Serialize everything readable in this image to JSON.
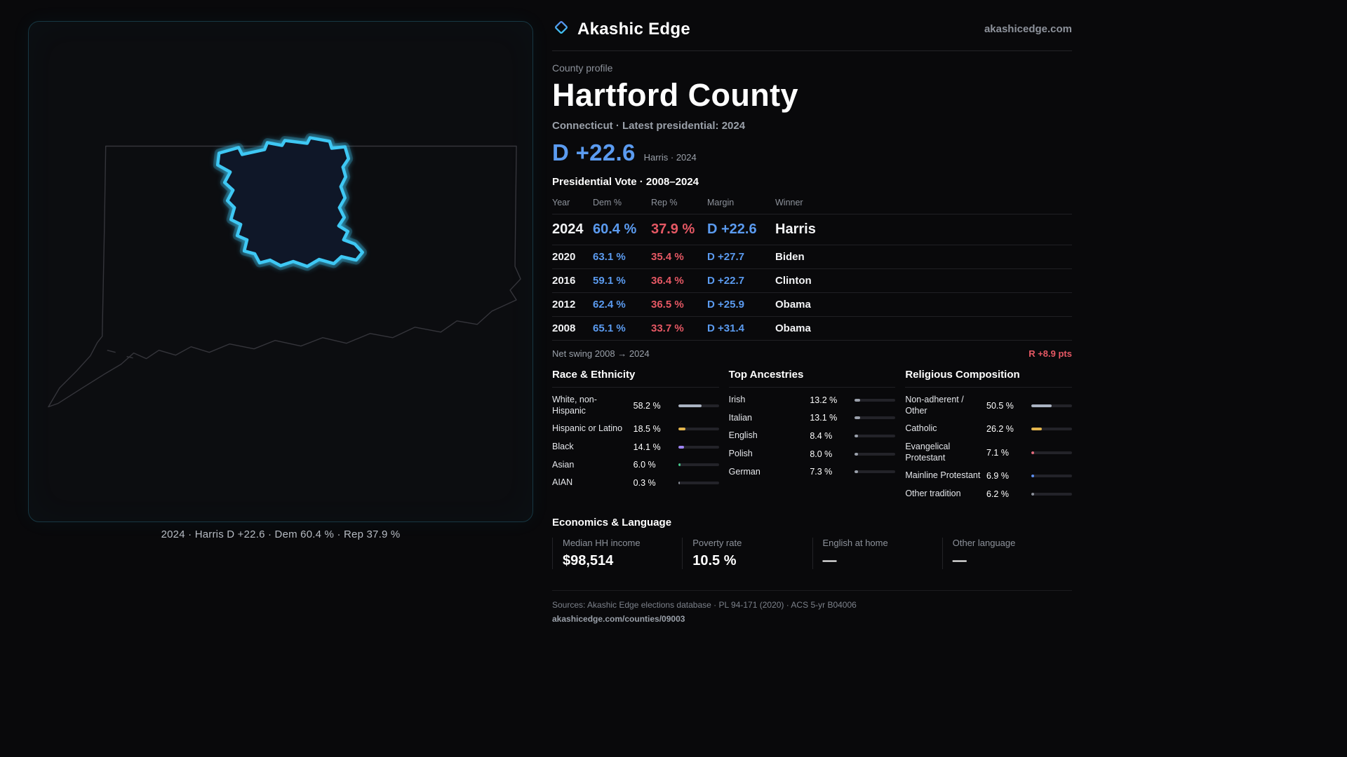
{
  "colors": {
    "accent_cyan": "#3ec8f4",
    "dem_blue": "#5b9bf0",
    "rep_red": "#e65864",
    "page_bg": "#09090b"
  },
  "brand": {
    "name": "Akashic Edge",
    "domain": "akashicedge.com",
    "logo_icon": "diamond-icon"
  },
  "profile": {
    "eyebrow": "County profile",
    "title": "Hartford County",
    "subtitle": "Connecticut · Latest presidential: 2024",
    "headline_margin": "D +22.6",
    "headline_detail": "Harris · 2024"
  },
  "map": {
    "caption": "2024 · Harris D +22.6 · Dem 60.4 % · Rep 37.9 %"
  },
  "vote_table": {
    "title": "Presidential Vote · 2008–2024",
    "columns": {
      "year": "Year",
      "dem": "Dem %",
      "rep": "Rep %",
      "margin": "Margin",
      "winner": "Winner"
    },
    "rows": [
      {
        "year": "2024",
        "dem": "60.4 %",
        "rep": "37.9 %",
        "margin": "D +22.6",
        "winner": "Harris"
      },
      {
        "year": "2020",
        "dem": "63.1 %",
        "rep": "35.4 %",
        "margin": "D +27.7",
        "winner": "Biden"
      },
      {
        "year": "2016",
        "dem": "59.1 %",
        "rep": "36.4 %",
        "margin": "D +22.7",
        "winner": "Clinton"
      },
      {
        "year": "2012",
        "dem": "62.4 %",
        "rep": "36.5 %",
        "margin": "D +25.9",
        "winner": "Obama"
      },
      {
        "year": "2008",
        "dem": "65.1 %",
        "rep": "33.7 %",
        "margin": "D +31.4",
        "winner": "Obama"
      }
    ],
    "net_swing_label": "Net swing 2008 → 2024",
    "net_swing_value": "R +8.9 pts"
  },
  "demographics": {
    "race": {
      "title": "Race & Ethnicity",
      "items": [
        {
          "label": "White, non-Hispanic",
          "value": "58.2 %",
          "pct": 58.2,
          "color": "#aab3c2"
        },
        {
          "label": "Hispanic or Latino",
          "value": "18.5 %",
          "pct": 18.5,
          "color": "#e3b54d"
        },
        {
          "label": "Black",
          "value": "14.1 %",
          "pct": 14.1,
          "color": "#9d83f2"
        },
        {
          "label": "Asian",
          "value": "6.0 %",
          "pct": 6.0,
          "color": "#43c68a"
        },
        {
          "label": "AIAN",
          "value": "0.3 %",
          "pct": 0.3,
          "color": "#8a8f99"
        }
      ]
    },
    "ancestries": {
      "title": "Top Ancestries",
      "items": [
        {
          "label": "Irish",
          "value": "13.2 %",
          "pct": 13.2,
          "color": "#9aa0ab"
        },
        {
          "label": "Italian",
          "value": "13.1 %",
          "pct": 13.1,
          "color": "#9aa0ab"
        },
        {
          "label": "English",
          "value": "8.4 %",
          "pct": 8.4,
          "color": "#9aa0ab"
        },
        {
          "label": "Polish",
          "value": "8.0 %",
          "pct": 8.0,
          "color": "#9aa0ab"
        },
        {
          "label": "German",
          "value": "7.3 %",
          "pct": 7.3,
          "color": "#9aa0ab"
        }
      ]
    },
    "religion": {
      "title": "Religious Composition",
      "items": [
        {
          "label": "Non-adherent / Other",
          "value": "50.5 %",
          "pct": 50.5,
          "color": "#aab3c2"
        },
        {
          "label": "Catholic",
          "value": "26.2 %",
          "pct": 26.2,
          "color": "#e3b54d"
        },
        {
          "label": "Evangelical Protestant",
          "value": "7.1 %",
          "pct": 7.1,
          "color": "#e0697a"
        },
        {
          "label": "Mainline Protestant",
          "value": "6.9 %",
          "pct": 6.9,
          "color": "#5b8def"
        },
        {
          "label": "Other tradition",
          "value": "6.2 %",
          "pct": 6.2,
          "color": "#8a8f99"
        }
      ]
    }
  },
  "economics": {
    "title": "Economics & Language",
    "stats": [
      {
        "label": "Median HH income",
        "value": "$98,514"
      },
      {
        "label": "Poverty rate",
        "value": "10.5 %"
      },
      {
        "label": "English at home",
        "value": "—"
      },
      {
        "label": "Other language",
        "value": "—"
      }
    ]
  },
  "footer": {
    "sources": "Sources: Akashic Edge elections database · PL 94-171 (2020) · ACS 5-yr B04006",
    "permalink": "akashicedge.com/counties/09003"
  }
}
